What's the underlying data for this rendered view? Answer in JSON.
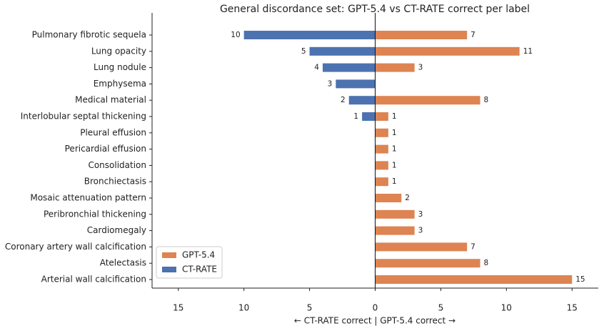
{
  "chart_data": {
    "type": "diverging-bar",
    "title": "General discordance set: GPT-5.4 vs CT-RATE correct per label",
    "xlabel": "← CT-RATE correct   |   GPT-5.4 correct →",
    "categories": [
      "Pulmonary fibrotic sequela",
      "Lung opacity",
      "Lung nodule",
      "Emphysema",
      "Medical material",
      "Interlobular septal thickening",
      "Pleural effusion",
      "Pericardial effusion",
      "Consolidation",
      "Bronchiectasis",
      "Mosaic attenuation pattern",
      "Peribronchial thickening",
      "Cardiomegaly",
      "Coronary artery wall calcification",
      "Atelectasis",
      "Arterial wall calcification"
    ],
    "series": [
      {
        "name": "GPT-5.4",
        "color": "#dd8452",
        "values": [
          7,
          11,
          3,
          null,
          8,
          1,
          1,
          1,
          1,
          1,
          2,
          3,
          3,
          7,
          8,
          15
        ]
      },
      {
        "name": "CT-RATE",
        "color": "#4c72b0",
        "values": [
          -10,
          -5,
          -4,
          -3,
          -2,
          -1,
          null,
          null,
          null,
          null,
          null,
          null,
          null,
          null,
          null,
          null
        ],
        "value_labels": [
          "10",
          "5",
          "4",
          "3",
          "2",
          "1",
          null,
          null,
          null,
          null,
          null,
          null,
          null,
          null,
          null,
          null
        ]
      }
    ],
    "xlim": [
      -17,
      17
    ],
    "xticks": [
      {
        "value": -15,
        "label": "15"
      },
      {
        "value": -10,
        "label": "10"
      },
      {
        "value": -5,
        "label": "5"
      },
      0,
      5,
      10,
      15
    ],
    "legend": "lower left"
  }
}
